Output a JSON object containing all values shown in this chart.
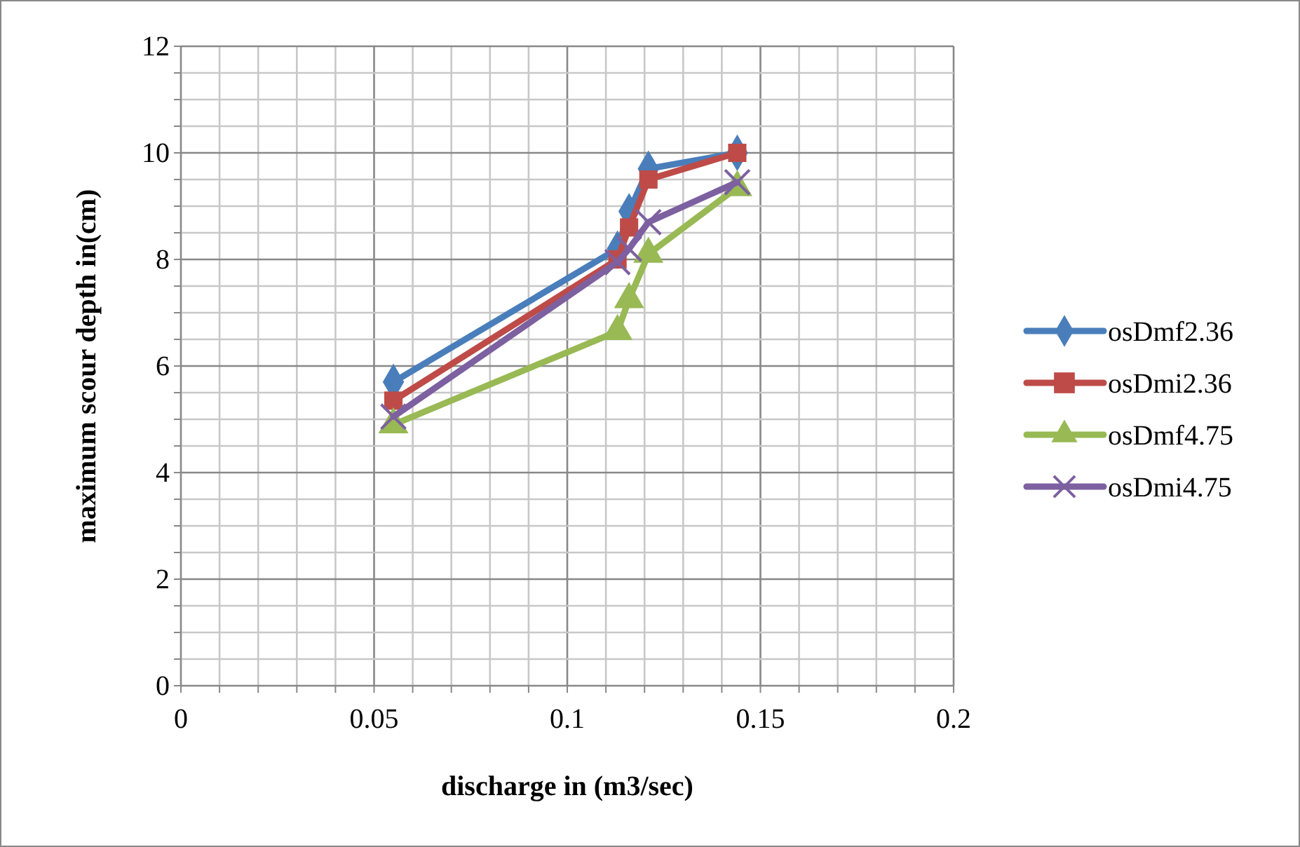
{
  "chart_data": {
    "type": "line",
    "xlabel": "discharge in (m3/sec)",
    "ylabel": "maximum scour depth in(cm)",
    "xlim": [
      0,
      0.2
    ],
    "ylim": [
      0,
      12
    ],
    "xticks": [
      0,
      {
        "value": 0.01,
        "label": null
      },
      {
        "value": 0.02,
        "label": null
      },
      {
        "value": 0.03,
        "label": null
      },
      {
        "value": 0.04,
        "label": null
      },
      0.05,
      {
        "value": 0.06,
        "label": null
      },
      {
        "value": 0.07,
        "label": null
      },
      {
        "value": 0.08,
        "label": null
      },
      {
        "value": 0.09,
        "label": null
      },
      0.1,
      {
        "value": 0.11,
        "label": null
      },
      {
        "value": 0.12,
        "label": null
      },
      {
        "value": 0.13,
        "label": null
      },
      {
        "value": 0.14,
        "label": null
      },
      0.15,
      {
        "value": 0.16,
        "label": null
      },
      {
        "value": 0.17,
        "label": null
      },
      {
        "value": 0.18,
        "label": null
      },
      {
        "value": 0.19,
        "label": null
      },
      0.2
    ],
    "yticks": [
      0,
      {
        "value": 0.5,
        "label": null
      },
      {
        "value": 1,
        "label": null
      },
      {
        "value": 1.5,
        "label": null
      },
      2,
      {
        "value": 2.5,
        "label": null
      },
      {
        "value": 3,
        "label": null
      },
      {
        "value": 3.5,
        "label": null
      },
      4,
      {
        "value": 4.5,
        "label": null
      },
      {
        "value": 5,
        "label": null
      },
      {
        "value": 5.5,
        "label": null
      },
      6,
      {
        "value": 6.5,
        "label": null
      },
      {
        "value": 7,
        "label": null
      },
      {
        "value": 7.5,
        "label": null
      },
      8,
      {
        "value": 8.5,
        "label": null
      },
      {
        "value": 9,
        "label": null
      },
      {
        "value": 9.5,
        "label": null
      },
      10,
      {
        "value": 10.5,
        "label": null
      },
      {
        "value": 11,
        "label": null
      },
      {
        "value": 11.5,
        "label": null
      },
      12
    ],
    "grid": true,
    "legend": "right",
    "x": [
      0.055,
      0.113,
      0.116,
      0.121,
      0.144
    ],
    "series": [
      {
        "name": "osDmf2.36",
        "color": "#4a7ebb",
        "marker": "diamond",
        "values": [
          5.7,
          8.2,
          8.9,
          9.7,
          10.0
        ]
      },
      {
        "name": "osDmi2.36",
        "color": "#be4b48",
        "marker": "square",
        "values": [
          5.35,
          8.0,
          8.6,
          9.5,
          10.0
        ]
      },
      {
        "name": "osDmf4.75",
        "color": "#98b954",
        "marker": "triangle",
        "values": [
          4.9,
          6.65,
          7.25,
          8.1,
          9.35
        ]
      },
      {
        "name": "osDmi4.75",
        "color": "#7d60a0",
        "marker": "cross",
        "values": [
          5.05,
          7.95,
          8.2,
          8.7,
          9.45
        ]
      }
    ]
  }
}
